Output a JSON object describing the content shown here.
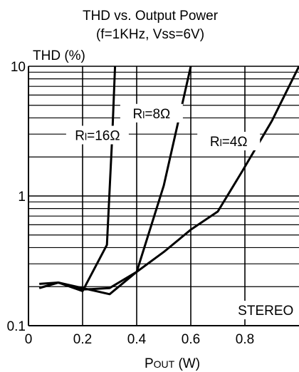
{
  "chart_data": {
    "type": "line",
    "title": "THD vs. Output Power",
    "subtitle": "(f=1KHz, Vss=6V)",
    "ylabel": "THD (%)",
    "xlabel_prefix": "P",
    "xlabel_sub": "OUT",
    "xlabel_unit": " (W)",
    "xlim": [
      0,
      1.0
    ],
    "ylim": [
      0.1,
      10
    ],
    "y_scale": "log",
    "grid": true,
    "x_ticks": [
      0,
      0.2,
      0.4,
      0.6,
      0.8
    ],
    "x_tick_labels": [
      "0",
      "0.2",
      "0.4",
      "0.6",
      "0.8"
    ],
    "y_tick_labels": [
      {
        "value": 10,
        "label": "10"
      },
      {
        "value": 1,
        "label": "1"
      },
      {
        "value": 0.1,
        "label": "0.1"
      }
    ],
    "annotation": "STEREO",
    "series": [
      {
        "name": "Rl=16Ω",
        "label_prefix": "R",
        "label_sub": "l",
        "label_rest": "=16Ω",
        "x": [
          0.04,
          0.11,
          0.2,
          0.29,
          0.31,
          0.32
        ],
        "y": [
          0.21,
          0.215,
          0.185,
          0.42,
          3.0,
          10.0
        ]
      },
      {
        "name": "Rl=8Ω",
        "label_prefix": "R",
        "label_sub": "l",
        "label_rest": "=8Ω",
        "x": [
          0.04,
          0.11,
          0.2,
          0.3,
          0.4,
          0.5,
          0.6
        ],
        "y": [
          0.195,
          0.215,
          0.19,
          0.195,
          0.26,
          1.2,
          10.0
        ]
      },
      {
        "name": "Rl=4Ω",
        "label_prefix": "R",
        "label_sub": "l",
        "label_rest": "=4Ω",
        "x": [
          0.04,
          0.11,
          0.2,
          0.3,
          0.4,
          0.5,
          0.6,
          0.7,
          0.79,
          0.9,
          1.0
        ],
        "y": [
          0.195,
          0.215,
          0.195,
          0.175,
          0.26,
          0.37,
          0.55,
          0.76,
          1.55,
          3.8,
          10.0
        ]
      }
    ]
  }
}
